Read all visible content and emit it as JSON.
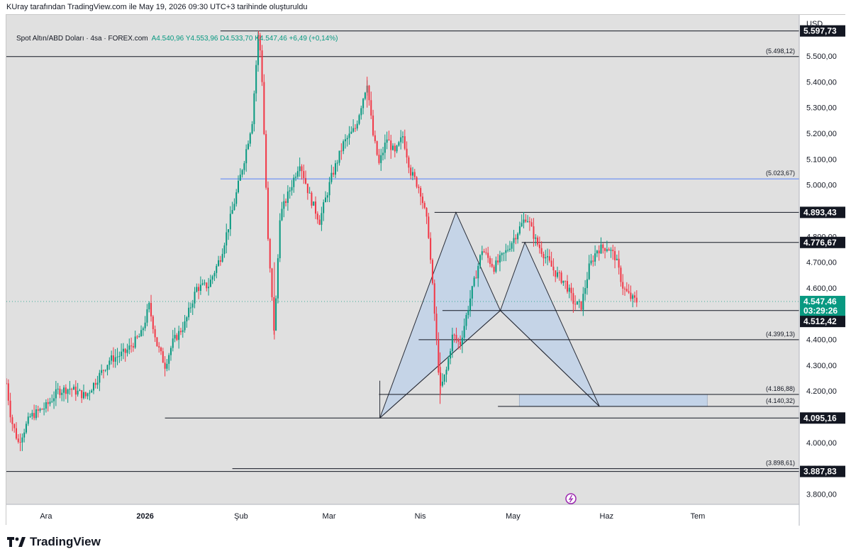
{
  "header": {
    "note": "KUray tarafından TradingView.com ile May 19, 2026 09:30 UTC+3 tarihinde oluşturuldu"
  },
  "legend": {
    "symbol": "Spot Altın/ABD Doları · 4sa · FOREX.com",
    "open": "A4.540,96",
    "high": "Y4.553,96",
    "low": "D4.533,70",
    "close": "K4.547,46",
    "change": "+6,49 (+0,14%)"
  },
  "brand": {
    "name": "TradingView"
  },
  "colors": {
    "up": "#089981",
    "down": "#f23645",
    "pattern_fill": "#bcd0ea",
    "blue_line": "#2962ff",
    "price_tag": "#089981"
  },
  "chart_data": {
    "type": "candlestick",
    "currency": "USD",
    "ylim": [
      3760,
      5660
    ],
    "y_ticks": [
      "3.800,00",
      "3.900,00",
      "4.000,00",
      "4.100,00",
      "4.200,00",
      "4.300,00",
      "4.400,00",
      "4.500,00",
      "4.600,00",
      "4.700,00",
      "4.800,00",
      "4.900,00",
      "5.000,00",
      "5.100,00",
      "5.200,00",
      "5.300,00",
      "5.400,00",
      "5.500,00"
    ],
    "x_labels": [
      {
        "label": "Ara",
        "t": 0.05
      },
      {
        "label": "2026",
        "t": 0.175
      },
      {
        "label": "Şub",
        "t": 0.296
      },
      {
        "label": "Mar",
        "t": 0.407
      },
      {
        "label": "Nis",
        "t": 0.522
      },
      {
        "label": "May",
        "t": 0.639
      },
      {
        "label": "Haz",
        "t": 0.757
      },
      {
        "label": "Tem",
        "t": 0.872
      }
    ],
    "price_path": [
      {
        "t": 0.0,
        "p": 4230
      },
      {
        "t": 0.006,
        "p": 4090
      },
      {
        "t": 0.015,
        "p": 4000
      },
      {
        "t": 0.03,
        "p": 4100
      },
      {
        "t": 0.05,
        "p": 4140
      },
      {
        "t": 0.065,
        "p": 4200
      },
      {
        "t": 0.08,
        "p": 4210
      },
      {
        "t": 0.1,
        "p": 4180
      },
      {
        "t": 0.115,
        "p": 4250
      },
      {
        "t": 0.13,
        "p": 4320
      },
      {
        "t": 0.15,
        "p": 4350
      },
      {
        "t": 0.17,
        "p": 4420
      },
      {
        "t": 0.18,
        "p": 4530
      },
      {
        "t": 0.19,
        "p": 4380
      },
      {
        "t": 0.2,
        "p": 4300
      },
      {
        "t": 0.21,
        "p": 4390
      },
      {
        "t": 0.225,
        "p": 4460
      },
      {
        "t": 0.24,
        "p": 4600
      },
      {
        "t": 0.255,
        "p": 4610
      },
      {
        "t": 0.27,
        "p": 4720
      },
      {
        "t": 0.285,
        "p": 4900
      },
      {
        "t": 0.3,
        "p": 5100
      },
      {
        "t": 0.31,
        "p": 5250
      },
      {
        "t": 0.318,
        "p": 5597
      },
      {
        "t": 0.322,
        "p": 5450
      },
      {
        "t": 0.33,
        "p": 4780
      },
      {
        "t": 0.338,
        "p": 4420
      },
      {
        "t": 0.345,
        "p": 4880
      },
      {
        "t": 0.355,
        "p": 4960
      },
      {
        "t": 0.37,
        "p": 5090
      },
      {
        "t": 0.382,
        "p": 4960
      },
      {
        "t": 0.395,
        "p": 4860
      },
      {
        "t": 0.41,
        "p": 5030
      },
      {
        "t": 0.425,
        "p": 5160
      },
      {
        "t": 0.44,
        "p": 5220
      },
      {
        "t": 0.455,
        "p": 5400
      },
      {
        "t": 0.462,
        "p": 5200
      },
      {
        "t": 0.47,
        "p": 5080
      },
      {
        "t": 0.48,
        "p": 5180
      },
      {
        "t": 0.49,
        "p": 5120
      },
      {
        "t": 0.5,
        "p": 5190
      },
      {
        "t": 0.51,
        "p": 5050
      },
      {
        "t": 0.522,
        "p": 4980
      },
      {
        "t": 0.532,
        "p": 4830
      },
      {
        "t": 0.54,
        "p": 4500
      },
      {
        "t": 0.547,
        "p": 4200
      },
      {
        "t": 0.555,
        "p": 4280
      },
      {
        "t": 0.563,
        "p": 4420
      },
      {
        "t": 0.572,
        "p": 4380
      },
      {
        "t": 0.585,
        "p": 4560
      },
      {
        "t": 0.6,
        "p": 4750
      },
      {
        "t": 0.615,
        "p": 4680
      },
      {
        "t": 0.63,
        "p": 4740
      },
      {
        "t": 0.645,
        "p": 4820
      },
      {
        "t": 0.656,
        "p": 4880
      },
      {
        "t": 0.668,
        "p": 4780
      },
      {
        "t": 0.68,
        "p": 4720
      },
      {
        "t": 0.692,
        "p": 4660
      },
      {
        "t": 0.705,
        "p": 4620
      },
      {
        "t": 0.716,
        "p": 4540
      },
      {
        "t": 0.725,
        "p": 4530
      },
      {
        "t": 0.735,
        "p": 4680
      },
      {
        "t": 0.745,
        "p": 4750
      },
      {
        "t": 0.758,
        "p": 4760
      },
      {
        "t": 0.768,
        "p": 4720
      },
      {
        "t": 0.778,
        "p": 4600
      },
      {
        "t": 0.788,
        "p": 4560
      },
      {
        "t": 0.796,
        "p": 4547
      }
    ],
    "levels": [
      {
        "price": 5597.73,
        "label": "",
        "x0": 0.27
      },
      {
        "price": 5498.12,
        "label": "(5.498,12)",
        "x0": 0.0
      },
      {
        "price": 5023.67,
        "label": "(5.023,67)",
        "x0": 0.27,
        "blue": true
      },
      {
        "price": 4893.43,
        "label": "",
        "x0": 0.54
      },
      {
        "price": 4776.67,
        "label": "",
        "x0": 0.65
      },
      {
        "price": 4512.42,
        "label": "",
        "x0": 0.55
      },
      {
        "price": 4399.13,
        "label": "(4.399,13)",
        "x0": 0.52
      },
      {
        "price": 4186.88,
        "label": "(4.186,88)",
        "x0": 0.47
      },
      {
        "price": 4140.32,
        "label": "(4.140,32)",
        "x0": 0.62
      },
      {
        "price": 4095.16,
        "label": "",
        "x0": 0.2
      },
      {
        "price": 3898.61,
        "label": "(3.898,61)",
        "x0": 0.285
      },
      {
        "price": 3887.83,
        "label": "",
        "x0": 0.0
      }
    ],
    "price_tags": [
      {
        "label": "5.597,73",
        "price": 5597.73,
        "style": "dark"
      },
      {
        "label": "4.893,43",
        "price": 4893.43,
        "style": "dark"
      },
      {
        "label": "4.776,67",
        "price": 4776.67,
        "style": "dark"
      },
      {
        "label": "4.547,46",
        "price": 4547.46,
        "style": "green"
      },
      {
        "label": "03:29:26",
        "price": 4512.42,
        "style": "green-sub"
      },
      {
        "label": "4.512,42",
        "price": 4470,
        "style": "dark"
      },
      {
        "label": "4.095,16",
        "price": 4095.16,
        "style": "dark"
      },
      {
        "label": "3.887,83",
        "price": 3887.83,
        "style": "dark"
      }
    ],
    "pattern": {
      "X": {
        "t": 0.471,
        "p": 4095.16
      },
      "A": {
        "t": 0.567,
        "p": 4893.43
      },
      "B": {
        "t": 0.623,
        "p": 4512.42
      },
      "C": {
        "t": 0.654,
        "p": 4776.67
      },
      "D": {
        "t": 0.748,
        "p": 4140.32
      }
    },
    "zone": {
      "t0": 0.647,
      "t1": 0.884,
      "p_top": 4186.88,
      "p_bottom": 4140.32
    }
  }
}
